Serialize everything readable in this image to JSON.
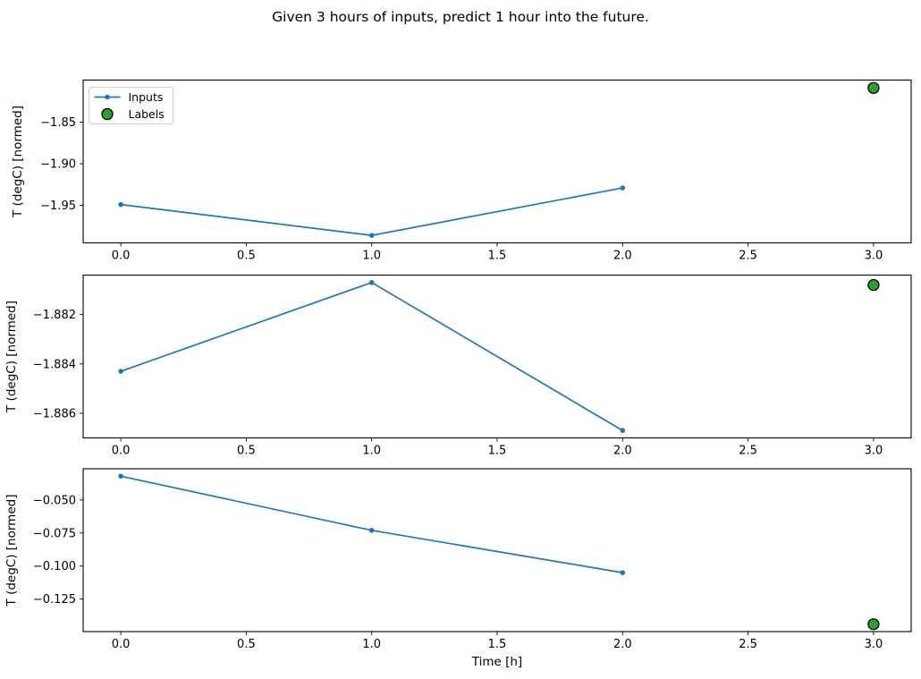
{
  "figure": {
    "title": "Given 3 hours of inputs, predict 1 hour into the future.",
    "background": "#ffffff",
    "colors": {
      "inputs_line": "#1f77b4",
      "labels_fill": "#2ca02c",
      "labels_edge": "#000000",
      "axis": "#000000",
      "legend_border": "#cccccc"
    }
  },
  "chart_data": [
    {
      "type": "line",
      "ylabel": "T (degC) [normed]",
      "xlabel": "",
      "x_ticks": [
        0.0,
        0.5,
        1.0,
        1.5,
        2.0,
        2.5,
        3.0
      ],
      "x_tick_labels": [
        "0.0",
        "0.5",
        "1.0",
        "1.5",
        "2.0",
        "2.5",
        "3.0"
      ],
      "y_ticks": [
        -1.85,
        -1.9,
        -1.95
      ],
      "y_tick_labels": [
        "−1.85",
        "−1.90",
        "−1.95"
      ],
      "xlim": [
        -0.15,
        3.15
      ],
      "ylim": [
        -1.995,
        -1.7996
      ],
      "grid": false,
      "legend": {
        "position": "upper left",
        "entries": [
          "Inputs",
          "Labels"
        ]
      },
      "series": [
        {
          "name": "Inputs",
          "type": "line",
          "x": [
            0,
            1,
            2
          ],
          "y": [
            -1.949,
            -1.986,
            -1.929
          ]
        },
        {
          "name": "Labels",
          "type": "scatter",
          "x": [
            3
          ],
          "y": [
            -1.809
          ]
        }
      ]
    },
    {
      "type": "line",
      "ylabel": "T (degC) [normed]",
      "xlabel": "",
      "x_ticks": [
        0.0,
        0.5,
        1.0,
        1.5,
        2.0,
        2.5,
        3.0
      ],
      "x_tick_labels": [
        "0.0",
        "0.5",
        "1.0",
        "1.5",
        "2.0",
        "2.5",
        "3.0"
      ],
      "y_ticks": [
        -1.882,
        -1.884,
        -1.886
      ],
      "y_tick_labels": [
        "−1.882",
        "−1.884",
        "−1.886"
      ],
      "xlim": [
        -0.15,
        3.15
      ],
      "ylim": [
        -1.887,
        -1.8804
      ],
      "grid": false,
      "legend": null,
      "series": [
        {
          "name": "Inputs",
          "type": "line",
          "x": [
            0,
            1,
            2
          ],
          "y": [
            -1.8843,
            -1.8807,
            -1.8867
          ]
        },
        {
          "name": "Labels",
          "type": "scatter",
          "x": [
            3
          ],
          "y": [
            -1.8808
          ]
        }
      ]
    },
    {
      "type": "line",
      "ylabel": "T (degC) [normed]",
      "xlabel": "Time [h]",
      "x_ticks": [
        0.0,
        0.5,
        1.0,
        1.5,
        2.0,
        2.5,
        3.0
      ],
      "x_tick_labels": [
        "0.0",
        "0.5",
        "1.0",
        "1.5",
        "2.0",
        "2.5",
        "3.0"
      ],
      "y_ticks": [
        -0.05,
        -0.075,
        -0.1,
        -0.125
      ],
      "y_tick_labels": [
        "−0.050",
        "−0.075",
        "−0.100",
        "−0.125"
      ],
      "xlim": [
        -0.15,
        3.15
      ],
      "ylim": [
        -0.1496,
        -0.0264
      ],
      "grid": false,
      "legend": null,
      "series": [
        {
          "name": "Inputs",
          "type": "line",
          "x": [
            0,
            1,
            2
          ],
          "y": [
            -0.032,
            -0.073,
            -0.105
          ]
        },
        {
          "name": "Labels",
          "type": "scatter",
          "x": [
            3
          ],
          "y": [
            -0.144
          ]
        }
      ]
    }
  ]
}
